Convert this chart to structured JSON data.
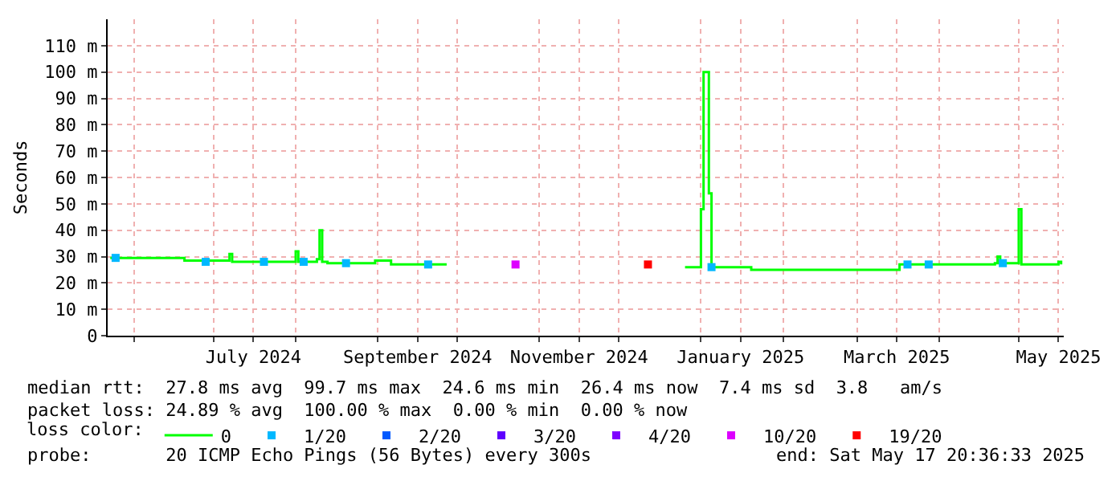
{
  "chart_data": {
    "type": "step",
    "ylabel": "Seconds",
    "xlim": [
      "2024-05-22",
      "2025-05-18"
    ],
    "ylim": [
      0,
      120
    ],
    "xticks": [
      {
        "value": "2024-06-01",
        "label": null
      },
      {
        "value": "2024-07-01",
        "label": null
      },
      {
        "value": "2024-07-16",
        "label": "July 2024"
      },
      {
        "value": "2024-08-01",
        "label": null
      },
      {
        "value": "2024-09-01",
        "label": null
      },
      {
        "value": "2024-09-16",
        "label": "September 2024"
      },
      {
        "value": "2024-10-01",
        "label": null
      },
      {
        "value": "2024-11-01",
        "label": null
      },
      {
        "value": "2024-11-16",
        "label": "November 2024"
      },
      {
        "value": "2024-12-01",
        "label": null
      },
      {
        "value": "2025-01-01",
        "label": null
      },
      {
        "value": "2025-01-16",
        "label": "January 2025"
      },
      {
        "value": "2025-02-01",
        "label": null
      },
      {
        "value": "2025-03-01",
        "label": null
      },
      {
        "value": "2025-03-16",
        "label": "March 2025"
      },
      {
        "value": "2025-04-01",
        "label": null
      },
      {
        "value": "2025-05-01",
        "label": null
      },
      {
        "value": "2025-05-16",
        "label": "May 2025"
      }
    ],
    "yticks": [
      {
        "value": 0,
        "label": "0"
      },
      {
        "value": 10,
        "label": "10 m"
      },
      {
        "value": 20,
        "label": "20 m"
      },
      {
        "value": 30,
        "label": "30 m"
      },
      {
        "value": 40,
        "label": "40 m"
      },
      {
        "value": 50,
        "label": "50 m"
      },
      {
        "value": 60,
        "label": "60 m"
      },
      {
        "value": 70,
        "label": "70 m"
      },
      {
        "value": 80,
        "label": "80 m"
      },
      {
        "value": 90,
        "label": "90 m"
      },
      {
        "value": 100,
        "label": "100 m"
      },
      {
        "value": 110,
        "label": "110 m"
      }
    ],
    "grid": true,
    "legend": "bottom",
    "legend_title": "loss color:",
    "series": [
      {
        "name": "0",
        "color": "#00ff00",
        "x": [
          "2024-05-23",
          "2024-06-10",
          "2024-06-20",
          "2024-07-06",
          "2024-07-07",
          "2024-07-08",
          "2024-07-31",
          "2024-08-01",
          "2024-08-02",
          "2024-08-09",
          "2024-08-10",
          "2024-08-11",
          "2024-08-13",
          "2024-08-31",
          "2024-09-05",
          "2024-09-06",
          "2024-09-27",
          "2024-09-28",
          "2024-12-25",
          "2024-12-26",
          "2024-12-31",
          "2025-01-01",
          "2025-01-02",
          "2025-01-03",
          "2025-01-04",
          "2025-01-05",
          "2025-01-20",
          "2025-03-15",
          "2025-03-17",
          "2025-04-22",
          "2025-04-23",
          "2025-04-24",
          "2025-04-30",
          "2025-05-01",
          "2025-05-02",
          "2025-05-15",
          "2025-05-16",
          "2025-05-17"
        ],
        "values": [
          29.5,
          29.5,
          28.5,
          28.5,
          31,
          28,
          28,
          32,
          28,
          29,
          40,
          28,
          27.5,
          28.5,
          28.5,
          27,
          27,
          null,
          null,
          26,
          26,
          48,
          100,
          100,
          54,
          26,
          25,
          25,
          27,
          27.5,
          30,
          27.5,
          27.5,
          48,
          27,
          27,
          28,
          27
        ]
      },
      {
        "name": "1/20",
        "color": "#00b8ff",
        "type": "scatter",
        "marker": "square",
        "x": [
          "2024-05-25",
          "2024-06-28",
          "2024-07-20",
          "2024-08-04",
          "2024-08-20",
          "2024-09-20",
          "2025-01-05",
          "2025-03-20",
          "2025-03-28",
          "2025-04-25"
        ],
        "values": [
          29.5,
          28,
          28,
          28,
          27.5,
          27,
          26,
          27,
          27,
          27.5
        ]
      },
      {
        "name": "2/20",
        "color": "#0059ff",
        "type": "scatter",
        "marker": "square"
      },
      {
        "name": "3/20",
        "color": "#5e00ff",
        "type": "scatter",
        "marker": "square"
      },
      {
        "name": "4/20",
        "color": "#7e00ff",
        "type": "scatter",
        "marker": "square"
      },
      {
        "name": "10/20",
        "color": "#dd00ff",
        "type": "scatter",
        "marker": "square",
        "x": [
          "2024-10-23"
        ],
        "values": [
          27
        ]
      },
      {
        "name": "19/20",
        "color": "#ff0000",
        "type": "scatter",
        "marker": "square",
        "x": [
          "2024-12-12"
        ],
        "values": [
          27
        ]
      }
    ],
    "annotations": [
      "median rtt:  27.8 ms avg  99.7 ms max  24.6 ms min  26.4 ms now  7.4 ms sd  3.8   am/s",
      "packet loss: 24.89 % avg  100.00 % max  0.00 % min  0.00 % now",
      "probe:       20 ICMP Echo Pings (56 Bytes) every 300s",
      "end: Sat May 17 20:36:33 2025"
    ]
  }
}
